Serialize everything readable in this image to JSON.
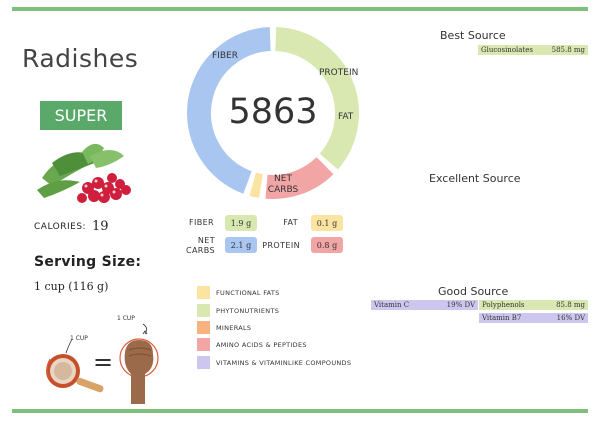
{
  "food": {
    "name": "Radishes",
    "rating": "SUPER"
  },
  "calories": {
    "label": "CALORIES:",
    "value": "19"
  },
  "serving": {
    "label": "Serving Size:",
    "value": "1 cup (116 g)",
    "cup_label_left": "1 CUP",
    "cup_label_right": "1 CUP",
    "equals": "="
  },
  "score": {
    "value": "5863",
    "segments": [
      {
        "name": "FIBER",
        "fraction": 0.37,
        "color": "#d8e8b0"
      },
      {
        "name": "PROTEIN",
        "fraction": 0.15,
        "color": "#f2a5a5"
      },
      {
        "name": "FAT",
        "fraction": 0.03,
        "color": "#fbe3a1"
      },
      {
        "name": "NET CARBS",
        "fraction": 0.45,
        "color": "#a9c6f0"
      }
    ],
    "label_fiber": "FIBER",
    "label_protein": "PROTEIN",
    "label_fat": "FAT",
    "label_net_carbs": "NET\nCARBS"
  },
  "macros": {
    "fiber": {
      "label": "FIBER",
      "value": "1.9 g",
      "color": "#d8e8b0"
    },
    "fat": {
      "label": "FAT",
      "value": "0.1 g",
      "color": "#fbe3a1"
    },
    "net_carbs": {
      "label": "NET\nCARBS",
      "value": "2.1 g",
      "color": "#a9c6f0"
    },
    "protein": {
      "label": "PROTEIN",
      "value": "0.8 g",
      "color": "#f2a5a5"
    }
  },
  "legend": [
    {
      "label": "FUNCTIONAL FATS",
      "color": "#fbe3a1"
    },
    {
      "label": "PHYTONUTRIENTS",
      "color": "#d8e8b0"
    },
    {
      "label": "MINERALS",
      "color": "#f7b37f"
    },
    {
      "label": "AMINO ACIDS & PEPTIDES",
      "color": "#f2a5a5"
    },
    {
      "label": "VITAMINS & VITAMINLIKE COMPOUNDS",
      "color": "#cdc6ef"
    }
  ],
  "sources": {
    "best": {
      "heading": "Best Source",
      "items": [
        {
          "name": "Glucosinolates",
          "value": "585.8 mg",
          "color": "#d8e8b0"
        }
      ]
    },
    "excellent": {
      "heading": "Excellent Source",
      "items": []
    },
    "good": {
      "heading": "Good Source",
      "items": [
        {
          "name": "Vitamin C",
          "value": "19% DV",
          "color": "#cdc6ef"
        },
        {
          "name": "Polyphenols",
          "value": "85.8 mg",
          "color": "#d8e8b0"
        },
        {
          "name": "Vitamin B7",
          "value": "16% DV",
          "color": "#cdc6ef"
        }
      ]
    }
  }
}
